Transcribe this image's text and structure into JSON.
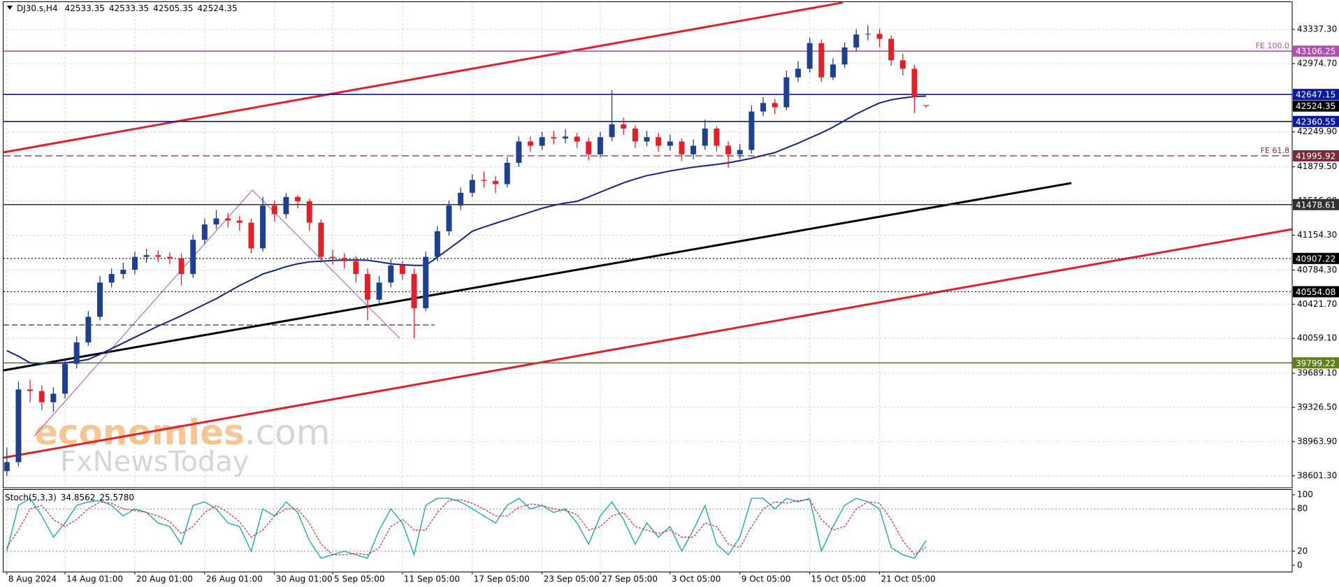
{
  "chart_data": {
    "type": "candlestick",
    "symbol": "DJ30.s,H4",
    "x": [
      "8 Aug 2024",
      null,
      null,
      null,
      null,
      "14 Aug 01:00",
      null,
      null,
      null,
      null,
      null,
      "20 Aug 01:00",
      null,
      null,
      null,
      null,
      null,
      "26 Aug 01:00",
      null,
      null,
      null,
      null,
      null,
      "30 Aug 01:00",
      null,
      null,
      null,
      null,
      "5 Sep 05:00",
      null,
      null,
      null,
      null,
      null,
      "11 Sep 05:00",
      null,
      null,
      null,
      null,
      null,
      "17 Sep 05:00",
      null,
      null,
      null,
      null,
      null,
      "23 Sep 05:00",
      null,
      null,
      null,
      null,
      "27 Sep 05:00",
      null,
      null,
      null,
      null,
      null,
      "3 Oct 05:00",
      null,
      null,
      null,
      null,
      null,
      "9 Oct 05:00",
      null,
      null,
      null,
      null,
      null,
      "15 Oct 05:00",
      null,
      null,
      null,
      null,
      null,
      "21 Oct 05:00",
      null,
      null,
      null,
      null
    ],
    "open": [
      38650,
      38746,
      39517,
      39500,
      39381,
      39472,
      39789,
      40016,
      40288,
      40651,
      40742,
      40787,
      40924,
      40942,
      40924,
      40910,
      40742,
      41105,
      41268,
      41332,
      41310,
      41287,
      41014,
      41468,
      41377,
      41559,
      41513,
      41287,
      40924,
      40910,
      40878,
      40742,
      40470,
      40651,
      40833,
      40742,
      40379,
      40924,
      41196,
      41468,
      41604,
      41740,
      41730,
      41695,
      41922,
      42148,
      42103,
      42194,
      42180,
      42200,
      42148,
      42012,
      42194,
      42330,
      42285,
      42148,
      42194,
      42103,
      42148,
      42012,
      42103,
      42285,
      42103,
      42012,
      42058,
      42466,
      42557,
      42511,
      42829,
      42920,
      43192,
      42829,
      42965,
      43146,
      43283,
      43290,
      43237,
      43010,
      42920,
      42533.35
    ],
    "high": [
      38900,
      39600,
      39620,
      39560,
      39540,
      39850,
      40080,
      40350,
      40720,
      40800,
      40860,
      40980,
      41010,
      40990,
      40970,
      40960,
      41160,
      41330,
      41420,
      41390,
      41360,
      41330,
      41560,
      41520,
      41600,
      41580,
      41540,
      41320,
      41000,
      40960,
      40930,
      40800,
      40720,
      40900,
      40880,
      40800,
      40980,
      41250,
      41520,
      41660,
      41800,
      41830,
      41780,
      41980,
      42200,
      42200,
      42250,
      42260,
      42280,
      42240,
      42190,
      42250,
      42693,
      42400,
      42320,
      42260,
      42240,
      42220,
      42180,
      42170,
      42380,
      42310,
      42150,
      42120,
      42530,
      42620,
      42600,
      42900,
      43000,
      43250,
      43230,
      43030,
      43200,
      43340,
      43380,
      43340,
      43270,
      43080,
      42960,
      42533.35
    ],
    "low": [
      38600,
      38700,
      39380,
      39300,
      39280,
      39420,
      39740,
      39980,
      40250,
      40600,
      40690,
      40740,
      40860,
      40870,
      40850,
      40620,
      40700,
      41060,
      41220,
      41240,
      41200,
      40960,
      40980,
      41300,
      41330,
      41440,
      41200,
      40860,
      40840,
      40800,
      40650,
      40250,
      40420,
      40600,
      40680,
      40060,
      40350,
      40880,
      41150,
      41420,
      41560,
      41660,
      41600,
      41660,
      41880,
      42040,
      42060,
      42120,
      42130,
      42080,
      41950,
      41980,
      42150,
      42220,
      42080,
      42100,
      42040,
      42050,
      41940,
      41960,
      42060,
      42040,
      41870,
      41960,
      42020,
      42420,
      42440,
      42480,
      42780,
      42880,
      42780,
      42800,
      42930,
      43100,
      43220,
      43150,
      42950,
      42850,
      42450,
      42505.35
    ],
    "close": [
      38746,
      39517,
      39500,
      39381,
      39472,
      39789,
      40016,
      40288,
      40651,
      40742,
      40787,
      40924,
      40942,
      40924,
      40910,
      40742,
      41105,
      41268,
      41332,
      41310,
      41287,
      41014,
      41468,
      41377,
      41559,
      41513,
      41287,
      40924,
      40910,
      40878,
      40742,
      40470,
      40651,
      40833,
      40742,
      40379,
      40924,
      41196,
      41468,
      41604,
      41740,
      41730,
      41695,
      41922,
      42148,
      42103,
      42194,
      42180,
      42200,
      42148,
      42012,
      42194,
      42330,
      42285,
      42148,
      42194,
      42103,
      42148,
      42012,
      42103,
      42285,
      42103,
      42012,
      42058,
      42466,
      42557,
      42511,
      42829,
      42920,
      43192,
      42829,
      42965,
      43146,
      43283,
      43290,
      43237,
      43010,
      42920,
      42620,
      42524.35
    ],
    "up_color": "#1f3f8f",
    "down_color": "#e3202a",
    "ylim": [
      38474,
      43627
    ],
    "yticks": [
      {
        "value": 43337.3,
        "label": "43337.30"
      },
      {
        "value": 42974.7,
        "label": "42974.70"
      },
      {
        "value": 42249.9,
        "label": "42249.90"
      },
      {
        "value": 41879.5,
        "label": "41879.50"
      },
      {
        "value": 41516.9,
        "label": "41516.90"
      },
      {
        "value": 41154.3,
        "label": "41154.30"
      },
      {
        "value": 40784.3,
        "label": "40784.30"
      },
      {
        "value": 40421.7,
        "label": "40421.70"
      },
      {
        "value": 40059.1,
        "label": "40059.10"
      },
      {
        "value": 39689.1,
        "label": "39689.10"
      },
      {
        "value": 39326.5,
        "label": "39326.50"
      },
      {
        "value": 38963.9,
        "label": "38963.90"
      },
      {
        "value": 38601.3,
        "label": "38601.30"
      }
    ],
    "grid": true,
    "ma": {
      "color": "#14238c",
      "values": [
        39929,
        39870,
        39800,
        39790,
        39795,
        39800,
        39815,
        39835,
        39890,
        39950,
        40010,
        40070,
        40130,
        40190,
        40243,
        40300,
        40360,
        40420,
        40480,
        40550,
        40620,
        40680,
        40742,
        40780,
        40820,
        40850,
        40870,
        40878,
        40885,
        40890,
        40890,
        40888,
        40870,
        40850,
        40840,
        40833,
        40833,
        40920,
        41010,
        41100,
        41196,
        41240,
        41280,
        41320,
        41360,
        41400,
        41440,
        41470,
        41495,
        41513,
        41560,
        41610,
        41660,
        41710,
        41750,
        41786,
        41810,
        41835,
        41856,
        41876,
        41890,
        41905,
        41922,
        41945,
        41970,
        42000,
        42030,
        42080,
        42130,
        42185,
        42239,
        42300,
        42370,
        42440,
        42500,
        42557,
        42590,
        42610,
        42625,
        42630
      ]
    },
    "levels": [
      {
        "value": 43106.25,
        "name": "FE 100.0",
        "color": "#b04fb0",
        "style": "solid"
      },
      {
        "value": 42647.15,
        "color": "#0a1a9a",
        "style": "solid"
      },
      {
        "value": 42360.55,
        "color": "#0a1a9a",
        "style": "solid"
      },
      {
        "value": 41995.92,
        "name": "FE 61.8",
        "color": "#7a2a3a",
        "style": "dashed"
      },
      {
        "value": 41478.61,
        "color": "#303030",
        "style": "solid"
      },
      {
        "value": 40907.22,
        "color": "#000000",
        "style": "dotted"
      },
      {
        "value": 40554.08,
        "color": "#000000",
        "style": "dotted"
      },
      {
        "value": 39799.22,
        "color": "#5f7f1f",
        "style": "solid"
      }
    ],
    "watermark": {
      "brand": "economies",
      "domain": ".com",
      "sub": "FxNewsToday"
    },
    "indicator": {
      "name": "Stoch(5,3,3)",
      "readout": [
        "34.8562",
        "25.5780"
      ],
      "ylim": [
        -9,
        108
      ],
      "yticks": [
        0,
        20,
        80,
        100
      ],
      "levels": [
        20,
        80
      ],
      "main": {
        "color": "#20a8b0",
        "values": [
          20,
          85,
          95,
          70,
          40,
          60,
          85,
          90,
          92,
          85,
          70,
          80,
          75,
          60,
          55,
          30,
          85,
          90,
          80,
          60,
          55,
          20,
          80,
          70,
          90,
          75,
          35,
          10,
          15,
          20,
          15,
          10,
          50,
          80,
          60,
          15,
          85,
          95,
          95,
          90,
          80,
          70,
          60,
          85,
          95,
          80,
          85,
          75,
          80,
          60,
          30,
          70,
          90,
          65,
          30,
          60,
          40,
          55,
          20,
          50,
          85,
          30,
          15,
          40,
          95,
          95,
          80,
          95,
          90,
          95,
          20,
          55,
          85,
          95,
          90,
          80,
          25,
          15,
          10,
          34.8562
        ]
      },
      "signal": {
        "color": "#e3202a",
        "values": [
          25,
          50,
          80,
          85,
          65,
          55,
          65,
          80,
          90,
          88,
          80,
          78,
          75,
          70,
          62,
          45,
          55,
          75,
          85,
          75,
          62,
          40,
          50,
          70,
          80,
          80,
          60,
          30,
          15,
          15,
          17,
          15,
          25,
          55,
          65,
          50,
          50,
          75,
          92,
          93,
          88,
          80,
          70,
          70,
          82,
          87,
          85,
          80,
          78,
          72,
          50,
          55,
          70,
          75,
          55,
          50,
          45,
          50,
          40,
          40,
          60,
          55,
          30,
          25,
          55,
          80,
          90,
          88,
          92,
          93,
          65,
          50,
          55,
          80,
          90,
          88,
          65,
          35,
          15,
          25.578
        ]
      }
    }
  }
}
